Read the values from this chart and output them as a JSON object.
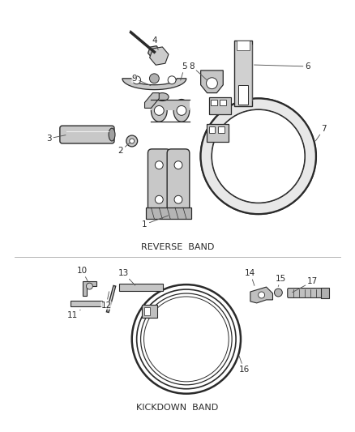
{
  "bg_color": "#ffffff",
  "fig_width": 4.38,
  "fig_height": 5.33,
  "dpi": 100,
  "section1_label": "REVERSE  BAND",
  "section2_label": "KICKDOWN  BAND",
  "dark": "#2a2a2a",
  "gray": "#666666",
  "mid": "#aaaaaa",
  "light": "#dddddd"
}
